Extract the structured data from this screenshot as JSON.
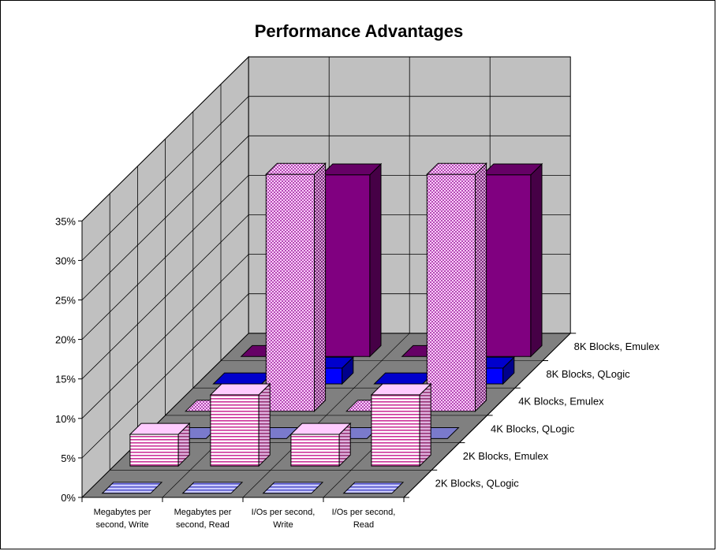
{
  "chart_data": {
    "type": "bar",
    "title": "Performance Advantages",
    "xlabel": "",
    "ylabel": "",
    "ylim": [
      0,
      35
    ],
    "yticks": [
      "0%",
      "5%",
      "10%",
      "15%",
      "20%",
      "25%",
      "30%",
      "35%"
    ],
    "categories": [
      [
        "Megabytes per",
        "second, Write"
      ],
      [
        "Megabytes per",
        "second, Read"
      ],
      [
        "I/Os per second,",
        "Write"
      ],
      [
        "I/Os per second,",
        "Read"
      ]
    ],
    "series": [
      {
        "name": "2K Blocks, QLogic",
        "values": [
          0,
          0,
          0,
          0
        ],
        "color": "#9999ff",
        "pattern": "hlines"
      },
      {
        "name": "2K Blocks, Emulex",
        "values": [
          4,
          9,
          4,
          9
        ],
        "color": "#ffccff",
        "pattern": "hlines"
      },
      {
        "name": "4K Blocks, QLogic",
        "values": [
          0,
          0,
          0,
          0
        ],
        "color": "#9999ff",
        "pattern": "solid"
      },
      {
        "name": "4K Blocks, Emulex",
        "values": [
          0,
          30,
          0,
          30
        ],
        "color": "#cc66cc",
        "pattern": "dots"
      },
      {
        "name": "8K Blocks, QLogic",
        "values": [
          0,
          2,
          0,
          2
        ],
        "color": "#0000ff",
        "pattern": "solid"
      },
      {
        "name": "8K Blocks, Emulex",
        "values": [
          0,
          23,
          0,
          23
        ],
        "color": "#800080",
        "pattern": "solid"
      }
    ],
    "grid": true,
    "legend": "depth-axis-labels"
  }
}
